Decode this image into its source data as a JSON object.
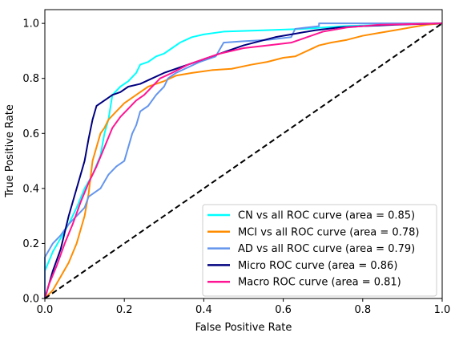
{
  "chart_data": {
    "type": "line",
    "xlabel": "False Positive Rate",
    "ylabel": "True Positive Rate",
    "xlim": [
      0.0,
      1.0
    ],
    "ylim": [
      0.0,
      1.05
    ],
    "x_ticks": [
      "0.0",
      "0.2",
      "0.4",
      "0.6",
      "0.8",
      "1.0"
    ],
    "y_ticks": [
      "0.0",
      "0.2",
      "0.4",
      "0.6",
      "0.8",
      "1.0"
    ],
    "grid": false,
    "legend_position": "lower-right",
    "series": [
      {
        "name": "CN vs all ROC curve (area = 0.85)",
        "color": "#00ffff",
        "points": [
          [
            0,
            0
          ],
          [
            0,
            0.1
          ],
          [
            0.02,
            0.17
          ],
          [
            0.04,
            0.22
          ],
          [
            0.06,
            0.27
          ],
          [
            0.08,
            0.33
          ],
          [
            0.1,
            0.4
          ],
          [
            0.12,
            0.45
          ],
          [
            0.14,
            0.52
          ],
          [
            0.15,
            0.6
          ],
          [
            0.16,
            0.65
          ],
          [
            0.17,
            0.74
          ],
          [
            0.19,
            0.77
          ],
          [
            0.21,
            0.79
          ],
          [
            0.23,
            0.82
          ],
          [
            0.24,
            0.85
          ],
          [
            0.26,
            0.86
          ],
          [
            0.28,
            0.88
          ],
          [
            0.3,
            0.89
          ],
          [
            0.32,
            0.91
          ],
          [
            0.34,
            0.93
          ],
          [
            0.37,
            0.95
          ],
          [
            0.4,
            0.96
          ],
          [
            0.45,
            0.97
          ],
          [
            0.55,
            0.975
          ],
          [
            0.65,
            0.98
          ],
          [
            0.75,
            0.99
          ],
          [
            0.85,
            0.995
          ],
          [
            1.0,
            1.0
          ]
        ]
      },
      {
        "name": "MCI vs all ROC curve (area = 0.78)",
        "color": "#ff8c00",
        "points": [
          [
            0,
            0
          ],
          [
            0.02,
            0.03
          ],
          [
            0.04,
            0.08
          ],
          [
            0.06,
            0.13
          ],
          [
            0.08,
            0.2
          ],
          [
            0.1,
            0.3
          ],
          [
            0.11,
            0.38
          ],
          [
            0.12,
            0.5
          ],
          [
            0.13,
            0.55
          ],
          [
            0.14,
            0.6
          ],
          [
            0.15,
            0.62
          ],
          [
            0.16,
            0.65
          ],
          [
            0.18,
            0.68
          ],
          [
            0.2,
            0.71
          ],
          [
            0.22,
            0.73
          ],
          [
            0.24,
            0.75
          ],
          [
            0.26,
            0.77
          ],
          [
            0.28,
            0.78
          ],
          [
            0.3,
            0.79
          ],
          [
            0.33,
            0.81
          ],
          [
            0.37,
            0.82
          ],
          [
            0.42,
            0.83
          ],
          [
            0.47,
            0.835
          ],
          [
            0.52,
            0.85
          ],
          [
            0.56,
            0.86
          ],
          [
            0.6,
            0.875
          ],
          [
            0.63,
            0.88
          ],
          [
            0.66,
            0.9
          ],
          [
            0.69,
            0.92
          ],
          [
            0.72,
            0.93
          ],
          [
            0.76,
            0.94
          ],
          [
            0.8,
            0.955
          ],
          [
            0.84,
            0.965
          ],
          [
            0.88,
            0.975
          ],
          [
            0.92,
            0.985
          ],
          [
            0.96,
            0.995
          ],
          [
            1.0,
            1.0
          ]
        ]
      },
      {
        "name": "AD vs all ROC curve (area = 0.79)",
        "color": "#6495ed",
        "points": [
          [
            0,
            0
          ],
          [
            0,
            0.15
          ],
          [
            0.02,
            0.2
          ],
          [
            0.04,
            0.23
          ],
          [
            0.06,
            0.27
          ],
          [
            0.08,
            0.3
          ],
          [
            0.1,
            0.33
          ],
          [
            0.11,
            0.37
          ],
          [
            0.14,
            0.4
          ],
          [
            0.16,
            0.45
          ],
          [
            0.18,
            0.48
          ],
          [
            0.2,
            0.5
          ],
          [
            0.21,
            0.55
          ],
          [
            0.22,
            0.6
          ],
          [
            0.23,
            0.63
          ],
          [
            0.24,
            0.68
          ],
          [
            0.26,
            0.7
          ],
          [
            0.28,
            0.74
          ],
          [
            0.3,
            0.77
          ],
          [
            0.31,
            0.8
          ],
          [
            0.33,
            0.82
          ],
          [
            0.36,
            0.84
          ],
          [
            0.39,
            0.86
          ],
          [
            0.43,
            0.88
          ],
          [
            0.45,
            0.93
          ],
          [
            0.5,
            0.935
          ],
          [
            0.56,
            0.94
          ],
          [
            0.62,
            0.95
          ],
          [
            0.63,
            0.98
          ],
          [
            0.69,
            0.99
          ],
          [
            0.69,
            1.0
          ],
          [
            1.0,
            1.0
          ]
        ]
      },
      {
        "name": "Micro ROC curve (area = 0.86)",
        "color": "#000080",
        "points": [
          [
            0,
            0
          ],
          [
            0.01,
            0.05
          ],
          [
            0.02,
            0.1
          ],
          [
            0.04,
            0.18
          ],
          [
            0.06,
            0.3
          ],
          [
            0.08,
            0.4
          ],
          [
            0.1,
            0.5
          ],
          [
            0.11,
            0.58
          ],
          [
            0.12,
            0.65
          ],
          [
            0.13,
            0.7
          ],
          [
            0.15,
            0.72
          ],
          [
            0.17,
            0.74
          ],
          [
            0.19,
            0.75
          ],
          [
            0.21,
            0.77
          ],
          [
            0.24,
            0.78
          ],
          [
            0.27,
            0.8
          ],
          [
            0.3,
            0.82
          ],
          [
            0.34,
            0.84
          ],
          [
            0.38,
            0.86
          ],
          [
            0.42,
            0.88
          ],
          [
            0.46,
            0.9
          ],
          [
            0.5,
            0.92
          ],
          [
            0.54,
            0.935
          ],
          [
            0.58,
            0.95
          ],
          [
            0.62,
            0.96
          ],
          [
            0.68,
            0.975
          ],
          [
            0.74,
            0.985
          ],
          [
            0.8,
            0.99
          ],
          [
            0.88,
            0.995
          ],
          [
            1.0,
            1.0
          ]
        ]
      },
      {
        "name": "Macro ROC curve (area = 0.81)",
        "color": "#ff1493",
        "points": [
          [
            0,
            0
          ],
          [
            0.01,
            0.05
          ],
          [
            0.03,
            0.12
          ],
          [
            0.05,
            0.2
          ],
          [
            0.07,
            0.27
          ],
          [
            0.09,
            0.35
          ],
          [
            0.11,
            0.42
          ],
          [
            0.13,
            0.48
          ],
          [
            0.15,
            0.55
          ],
          [
            0.17,
            0.62
          ],
          [
            0.19,
            0.66
          ],
          [
            0.21,
            0.69
          ],
          [
            0.23,
            0.72
          ],
          [
            0.25,
            0.74
          ],
          [
            0.27,
            0.77
          ],
          [
            0.29,
            0.8
          ],
          [
            0.32,
            0.82
          ],
          [
            0.36,
            0.85
          ],
          [
            0.4,
            0.87
          ],
          [
            0.44,
            0.89
          ],
          [
            0.5,
            0.91
          ],
          [
            0.56,
            0.92
          ],
          [
            0.62,
            0.93
          ],
          [
            0.66,
            0.95
          ],
          [
            0.7,
            0.97
          ],
          [
            0.76,
            0.985
          ],
          [
            0.84,
            0.995
          ],
          [
            1.0,
            1.0
          ]
        ]
      },
      {
        "name": "",
        "color": "#000000",
        "dashed": true,
        "points": [
          [
            0,
            0
          ],
          [
            1,
            1
          ]
        ]
      }
    ]
  }
}
